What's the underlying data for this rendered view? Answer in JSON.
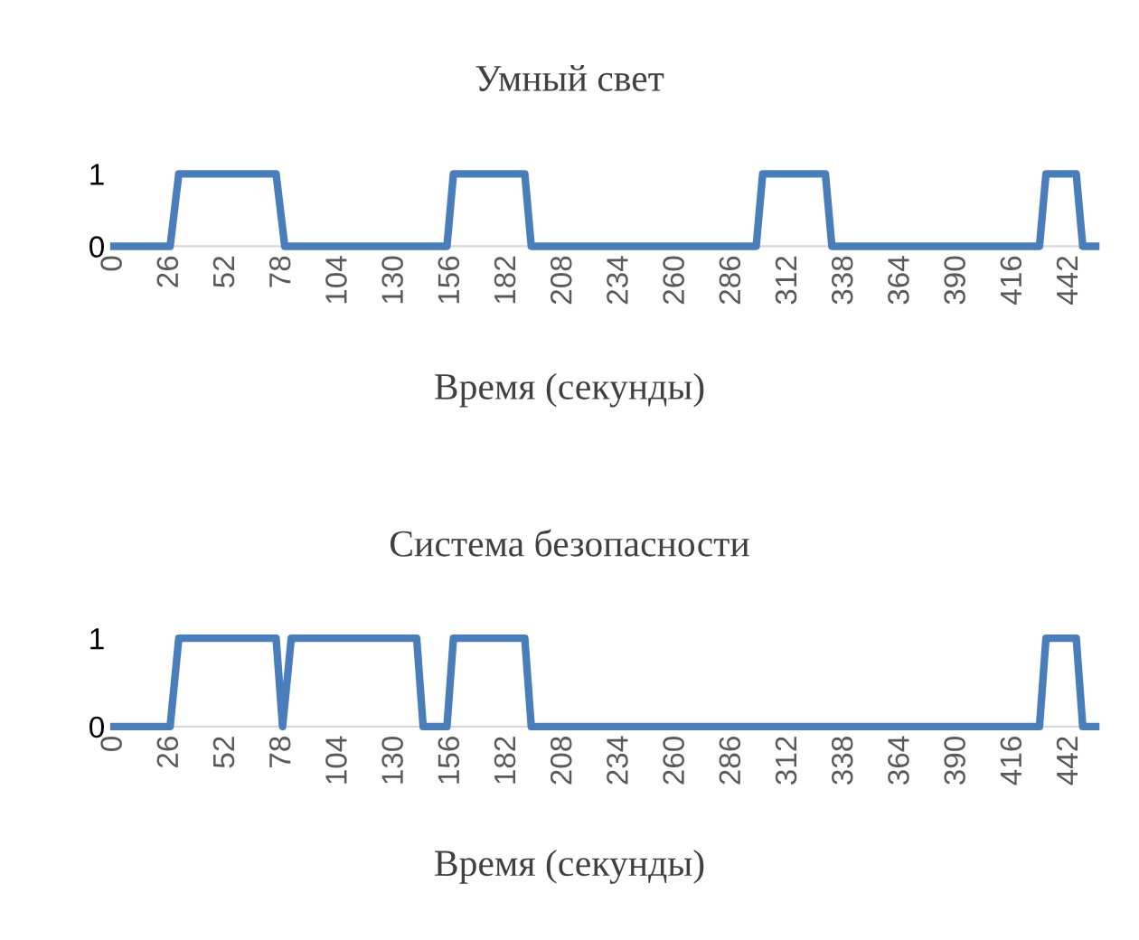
{
  "chart_data": [
    {
      "type": "line",
      "title": "Умный свет",
      "xlabel": "Время (секунды)",
      "x": [
        0,
        26,
        30,
        75,
        79,
        154,
        157,
        190,
        193,
        297,
        300,
        329,
        332,
        428,
        431,
        445,
        448,
        454
      ],
      "series": [
        {
          "color": "#4a7ebb",
          "values": [
            0,
            0,
            1,
            1,
            0,
            0,
            1,
            1,
            0,
            0,
            1,
            1,
            0,
            0,
            1,
            1,
            0,
            0
          ]
        }
      ],
      "xlim": [
        0,
        454
      ],
      "xticks": [
        0,
        26,
        52,
        78,
        104,
        130,
        156,
        182,
        208,
        234,
        260,
        286,
        312,
        338,
        364,
        390,
        416,
        442
      ],
      "ylim": [
        0,
        1
      ],
      "yticks": [
        0,
        1
      ],
      "legend": false,
      "marker": "none",
      "line_style": "solid"
    },
    {
      "type": "line",
      "title": "Система безопасности",
      "xlabel": "Время (секунды)",
      "x": [
        0,
        26,
        30,
        75,
        78,
        82,
        140,
        143,
        154,
        157,
        190,
        193,
        428,
        431,
        445,
        448,
        454
      ],
      "series": [
        {
          "color": "#4a7ebb",
          "values": [
            0,
            0,
            1,
            1,
            0,
            1,
            1,
            0,
            0,
            1,
            1,
            0,
            0,
            1,
            1,
            0,
            0
          ]
        }
      ],
      "xlim": [
        0,
        454
      ],
      "xticks": [
        0,
        26,
        52,
        78,
        104,
        130,
        156,
        182,
        208,
        234,
        260,
        286,
        312,
        338,
        364,
        390,
        416,
        442
      ],
      "ylim": [
        0,
        1
      ],
      "yticks": [
        0,
        1
      ],
      "legend": false,
      "marker": "none",
      "line_style": "solid"
    }
  ]
}
